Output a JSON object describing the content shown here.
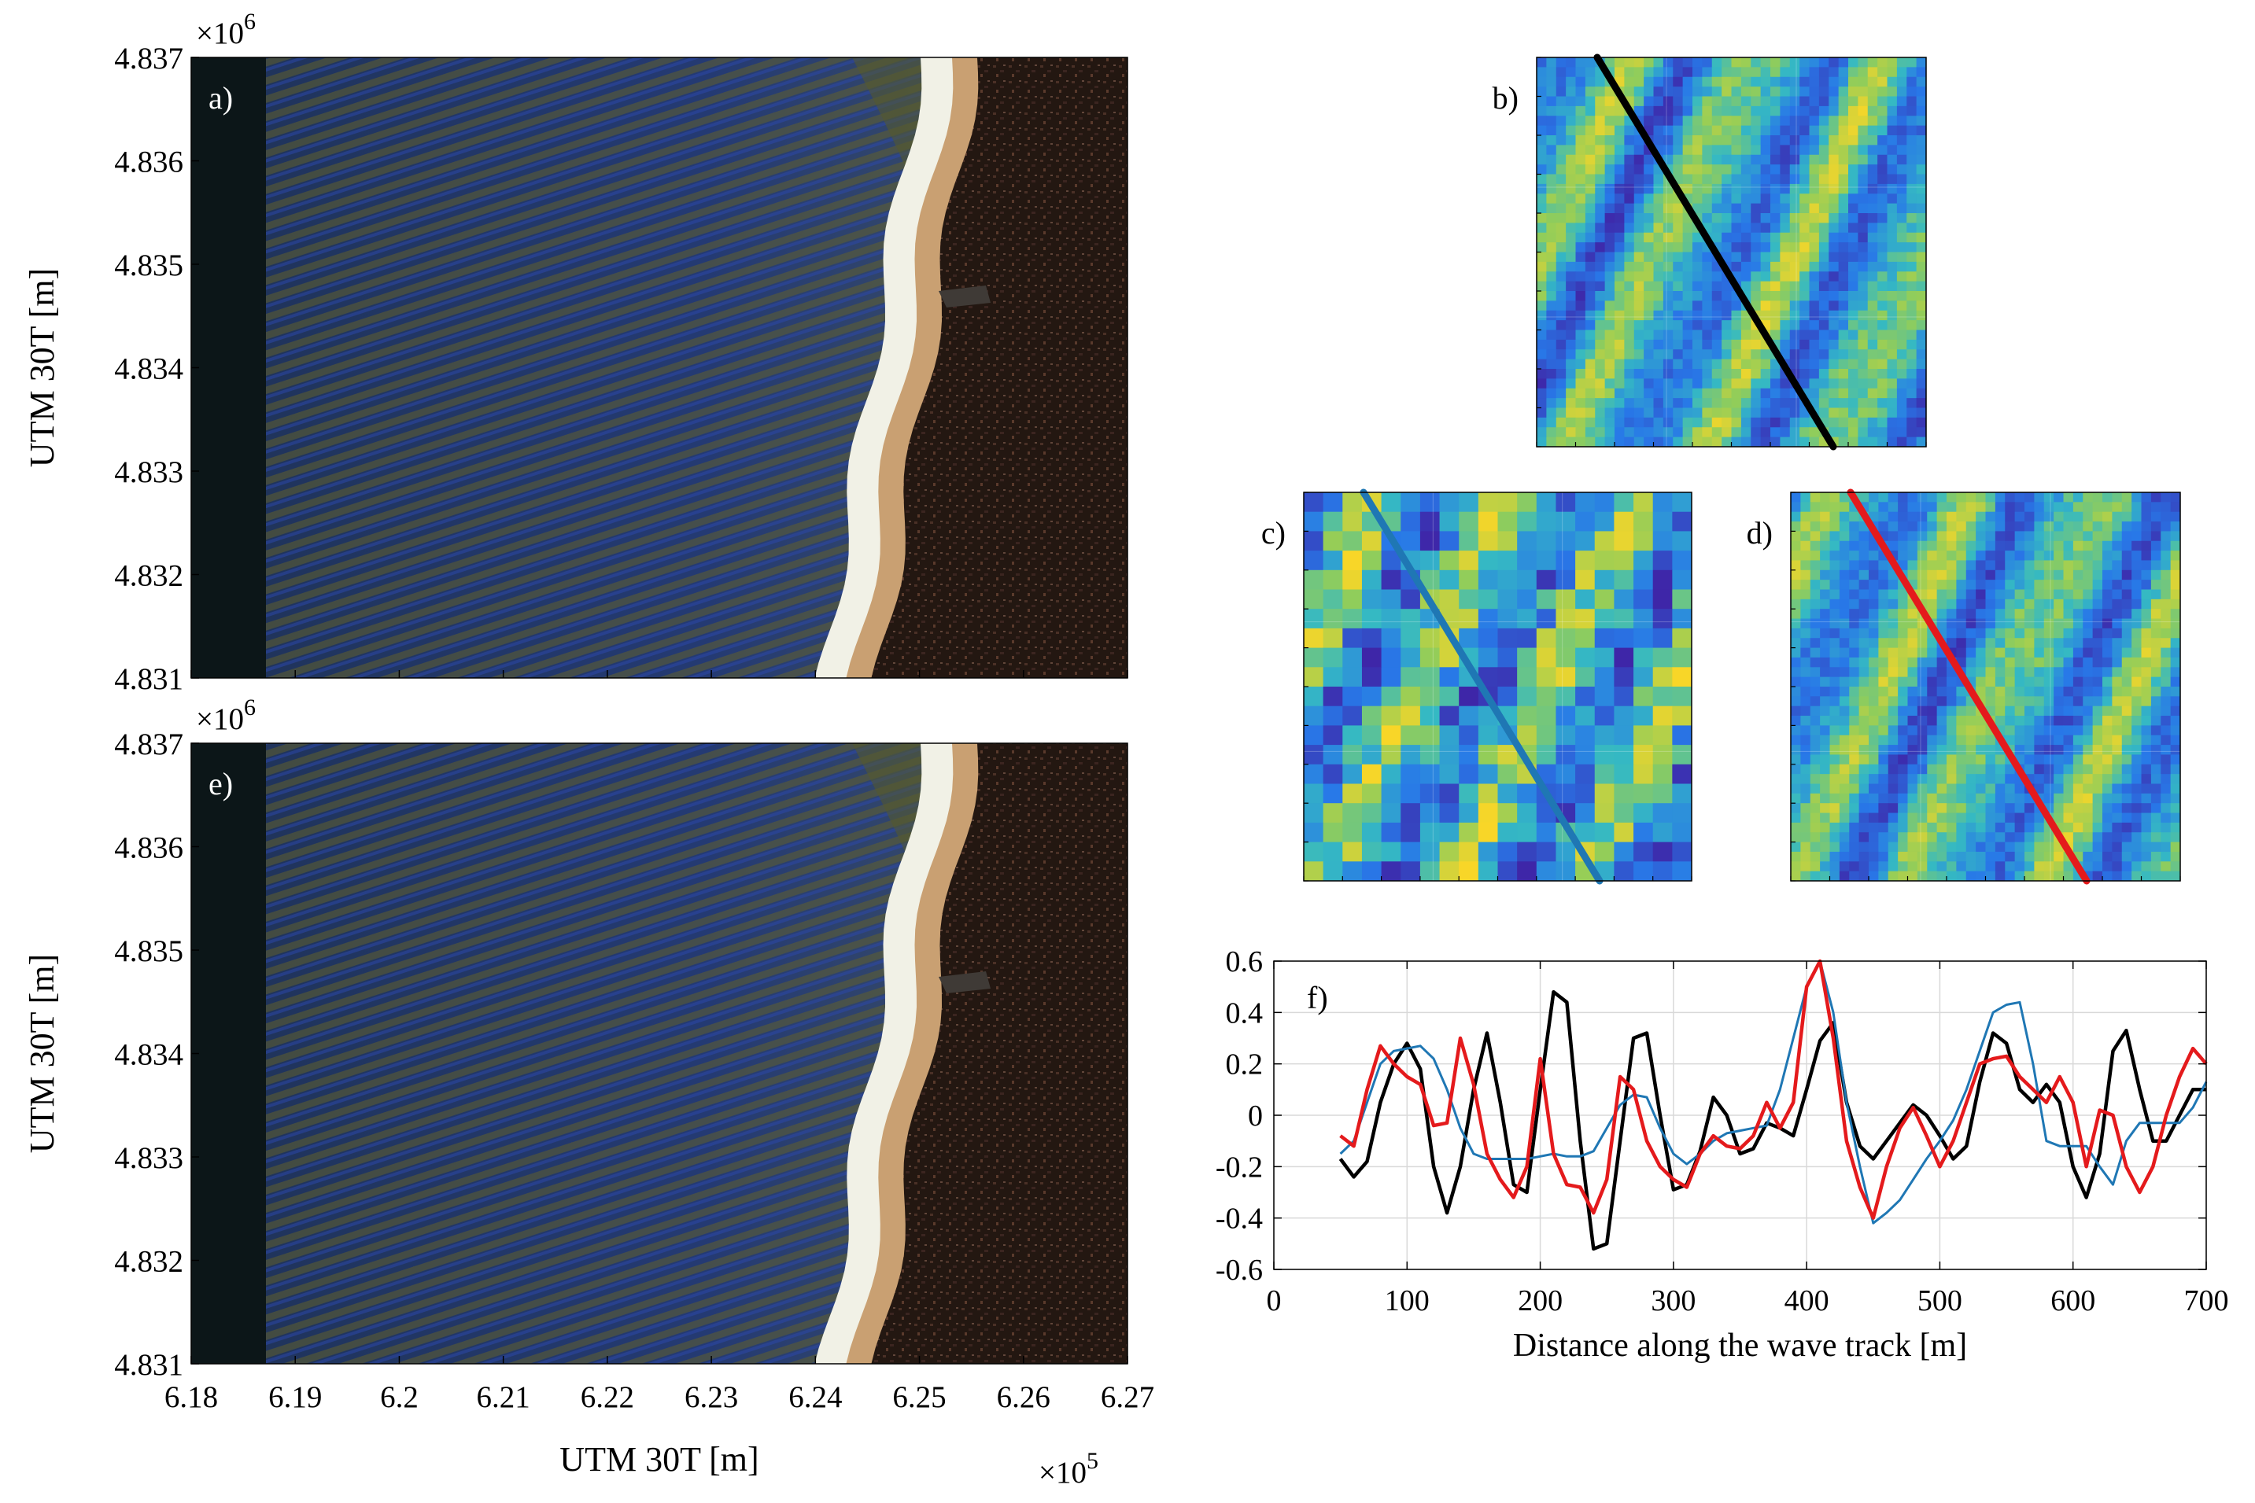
{
  "colors": {
    "sea_dark": "#19304f",
    "sea_blue": "#2a3f86",
    "sea_olive": "#565a2c",
    "surf_white": "#f1f1e6",
    "sand": "#c9a072",
    "land_dark": "#251914",
    "strip_dark": "#0c1618",
    "series_black": "#000000",
    "series_blue": "#1f77b4",
    "series_red": "#e41a1c",
    "map_low": "#3f2ad0",
    "map_mid": "#34b7c5",
    "map_high": "#f7d52a"
  },
  "panels": {
    "a": {
      "label": "a)"
    },
    "e": {
      "label": "e)"
    },
    "b": {
      "label": "b)",
      "track_color": "#000000"
    },
    "c": {
      "label": "c)",
      "track_color": "#1f77b4"
    },
    "d": {
      "label": "d)",
      "track_color": "#e41a1c"
    },
    "f": {
      "label": "f)"
    }
  },
  "map_axes": {
    "ylabel": "UTM 30T [m]",
    "xlabel": "UTM 30T [m]",
    "y_multiplier_base": "×10",
    "y_multiplier_exp": "6",
    "x_multiplier_base": "×10",
    "x_multiplier_exp": "5",
    "yticks": [
      "4.837",
      "4.836",
      "4.835",
      "4.834",
      "4.833",
      "4.832",
      "4.831"
    ],
    "xticks": [
      "6.18",
      "6.19",
      "6.2",
      "6.21",
      "6.22",
      "6.23",
      "6.24",
      "6.25",
      "6.26",
      "6.27"
    ]
  },
  "chart_data": {
    "type": "line",
    "title": "",
    "panel_label": "f)",
    "xlabel": "Distance along the wave track [m]",
    "ylabel": "",
    "xlim": [
      0,
      700
    ],
    "ylim": [
      -0.6,
      0.6
    ],
    "xticks": [
      0,
      100,
      200,
      300,
      400,
      500,
      600,
      700
    ],
    "yticks": [
      0.6,
      0.4,
      0.2,
      0,
      -0.2,
      -0.4,
      -0.6
    ],
    "xtick_labels": [
      "0",
      "100",
      "200",
      "300",
      "400",
      "500",
      "600",
      "700"
    ],
    "ytick_labels": [
      "0.6",
      "0.4",
      "0.2",
      "0",
      "-0.2",
      "-0.4",
      "-0.6"
    ],
    "grid": true,
    "series": [
      {
        "name": "black",
        "color": "#000000",
        "x": [
          50,
          60,
          70,
          80,
          90,
          100,
          110,
          120,
          130,
          140,
          150,
          160,
          170,
          180,
          190,
          200,
          210,
          220,
          230,
          240,
          250,
          260,
          270,
          280,
          290,
          300,
          310,
          320,
          330,
          340,
          350,
          360,
          370,
          380,
          390,
          400,
          410,
          420,
          430,
          440,
          450,
          460,
          470,
          480,
          490,
          500,
          510,
          520,
          530,
          540,
          550,
          560,
          570,
          580,
          590,
          600,
          610,
          620,
          630,
          640,
          650,
          660,
          670,
          680,
          690,
          700
        ],
        "y": [
          -0.17,
          -0.24,
          -0.18,
          0.05,
          0.2,
          0.28,
          0.18,
          -0.2,
          -0.38,
          -0.2,
          0.1,
          0.32,
          0.05,
          -0.27,
          -0.3,
          0.1,
          0.48,
          0.44,
          -0.1,
          -0.52,
          -0.5,
          -0.1,
          0.3,
          0.32,
          0,
          -0.29,
          -0.27,
          -0.14,
          0.07,
          0,
          -0.15,
          -0.13,
          -0.03,
          -0.05,
          -0.08,
          0.1,
          0.29,
          0.36,
          0.05,
          -0.12,
          -0.17,
          -0.1,
          -0.03,
          0.04,
          0,
          -0.08,
          -0.17,
          -0.12,
          0.13,
          0.32,
          0.28,
          0.1,
          0.05,
          0.12,
          0.05,
          -0.2,
          -0.32,
          -0.15,
          0.25,
          0.33,
          0.1,
          -0.1,
          -0.1,
          0,
          0.1,
          0.1
        ]
      },
      {
        "name": "blue",
        "color": "#1f77b4",
        "x": [
          50,
          60,
          70,
          80,
          90,
          100,
          110,
          120,
          130,
          140,
          150,
          160,
          170,
          180,
          190,
          200,
          210,
          220,
          230,
          240,
          250,
          260,
          270,
          280,
          290,
          300,
          310,
          320,
          330,
          340,
          350,
          360,
          370,
          380,
          390,
          400,
          410,
          420,
          430,
          440,
          450,
          460,
          470,
          480,
          490,
          500,
          510,
          520,
          530,
          540,
          550,
          560,
          570,
          580,
          590,
          600,
          610,
          620,
          630,
          640,
          650,
          660,
          670,
          680,
          690,
          700
        ],
        "y": [
          -0.15,
          -0.1,
          0.05,
          0.2,
          0.25,
          0.26,
          0.27,
          0.22,
          0.1,
          -0.05,
          -0.15,
          -0.17,
          -0.17,
          -0.17,
          -0.17,
          -0.16,
          -0.15,
          -0.16,
          -0.16,
          -0.14,
          -0.05,
          0.04,
          0.08,
          0.07,
          -0.05,
          -0.15,
          -0.19,
          -0.15,
          -0.1,
          -0.07,
          -0.06,
          -0.05,
          -0.04,
          0.1,
          0.3,
          0.5,
          0.6,
          0.4,
          0.05,
          -0.2,
          -0.42,
          -0.38,
          -0.33,
          -0.25,
          -0.17,
          -0.1,
          -0.02,
          0.1,
          0.25,
          0.4,
          0.43,
          0.44,
          0.2,
          -0.1,
          -0.12,
          -0.12,
          -0.12,
          -0.2,
          -0.27,
          -0.1,
          -0.03,
          -0.03,
          -0.03,
          -0.03,
          0.03,
          0.13
        ]
      },
      {
        "name": "red",
        "color": "#e41a1c",
        "x": [
          50,
          60,
          70,
          80,
          90,
          100,
          110,
          120,
          130,
          140,
          150,
          160,
          170,
          180,
          190,
          200,
          210,
          220,
          230,
          240,
          250,
          260,
          270,
          280,
          290,
          300,
          310,
          320,
          330,
          340,
          350,
          360,
          370,
          380,
          390,
          400,
          410,
          420,
          430,
          440,
          450,
          460,
          470,
          480,
          490,
          500,
          510,
          520,
          530,
          540,
          550,
          560,
          570,
          580,
          590,
          600,
          610,
          620,
          630,
          640,
          650,
          660,
          670,
          680,
          690,
          700
        ],
        "y": [
          -0.08,
          -0.12,
          0.1,
          0.27,
          0.2,
          0.15,
          0.12,
          -0.04,
          -0.03,
          0.3,
          0.12,
          -0.15,
          -0.25,
          -0.32,
          -0.2,
          0.22,
          -0.15,
          -0.27,
          -0.28,
          -0.38,
          -0.25,
          0.15,
          0.1,
          -0.1,
          -0.2,
          -0.25,
          -0.28,
          -0.15,
          -0.08,
          -0.12,
          -0.13,
          -0.08,
          0.05,
          -0.05,
          0.05,
          0.5,
          0.6,
          0.3,
          -0.1,
          -0.28,
          -0.4,
          -0.2,
          -0.05,
          0.03,
          -0.08,
          -0.2,
          -0.1,
          0.05,
          0.2,
          0.22,
          0.23,
          0.15,
          0.1,
          0.05,
          0.15,
          0.05,
          -0.2,
          0.02,
          0,
          -0.2,
          -0.3,
          -0.2,
          0,
          0.15,
          0.26,
          0.2
        ]
      }
    ]
  }
}
